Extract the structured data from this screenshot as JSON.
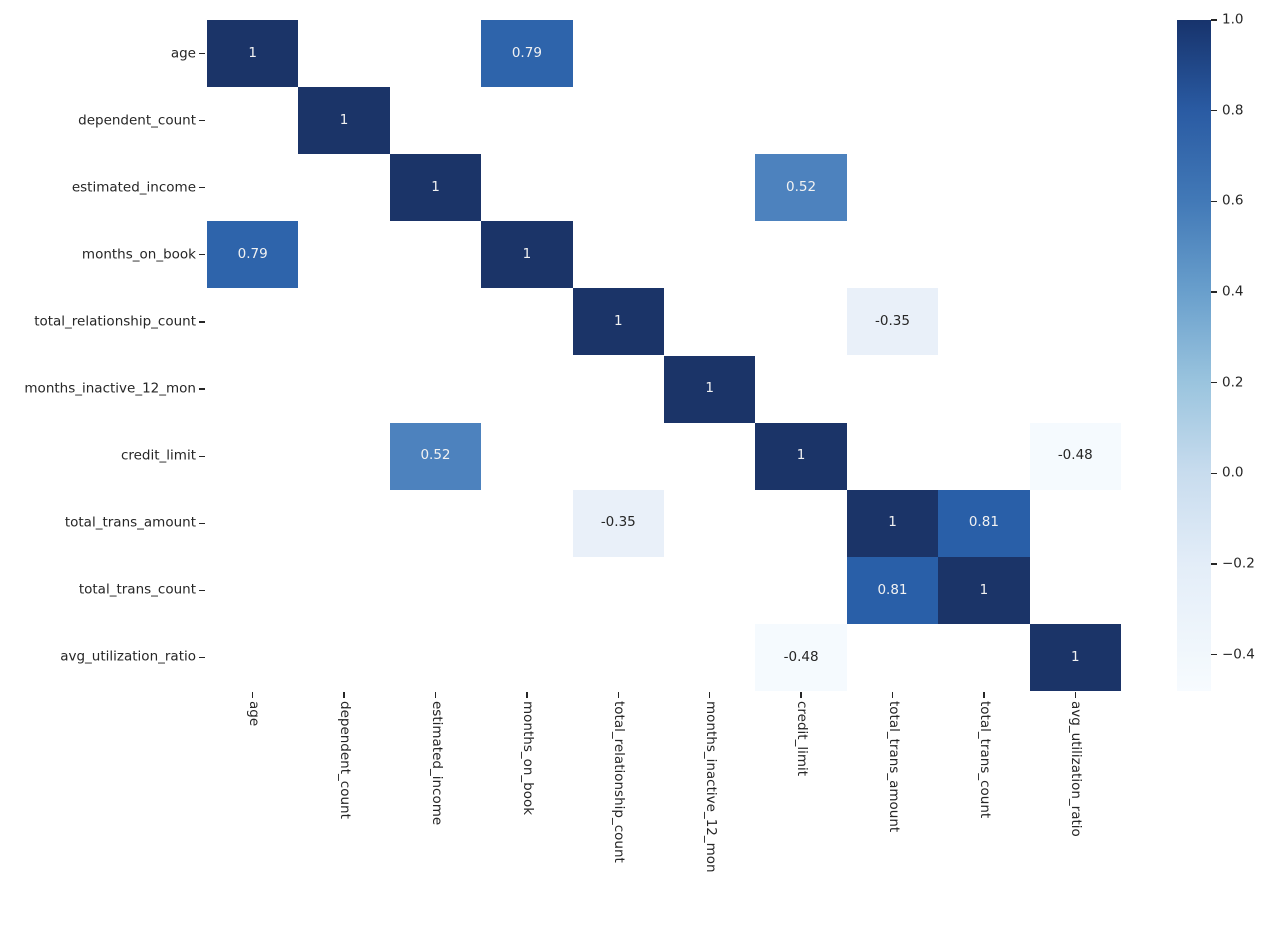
{
  "chart_data": {
    "type": "heatmap",
    "title": "",
    "xlabel": "",
    "ylabel": "",
    "colormap": "Blues",
    "grid": "off",
    "variables": [
      "age",
      "dependent_count",
      "estimated_income",
      "months_on_book",
      "total_relationship_count",
      "months_inactive_12_mon",
      "credit_limit",
      "total_trans_amount",
      "total_trans_count",
      "avg_utilization_ratio"
    ],
    "masked_cells_are_blank": true,
    "cells": [
      {
        "row": 0,
        "col": 0,
        "value": 1,
        "label": "1",
        "color": "#1b3468",
        "text_color": "#f2f2f2"
      },
      {
        "row": 0,
        "col": 3,
        "value": 0.79,
        "label": "0.79",
        "color": "#2e64ab",
        "text_color": "#f2f2f2"
      },
      {
        "row": 1,
        "col": 1,
        "value": 1,
        "label": "1",
        "color": "#1b3468",
        "text_color": "#f2f2f2"
      },
      {
        "row": 2,
        "col": 2,
        "value": 1,
        "label": "1",
        "color": "#1b3468",
        "text_color": "#f2f2f2"
      },
      {
        "row": 2,
        "col": 6,
        "value": 0.52,
        "label": "0.52",
        "color": "#4d82be",
        "text_color": "#f2f2f2"
      },
      {
        "row": 3,
        "col": 0,
        "value": 0.79,
        "label": "0.79",
        "color": "#2e64ab",
        "text_color": "#f2f2f2"
      },
      {
        "row": 3,
        "col": 3,
        "value": 1,
        "label": "1",
        "color": "#1b3468",
        "text_color": "#f2f2f2"
      },
      {
        "row": 4,
        "col": 4,
        "value": 1,
        "label": "1",
        "color": "#1b3468",
        "text_color": "#f2f2f2"
      },
      {
        "row": 4,
        "col": 7,
        "value": -0.35,
        "label": "-0.35",
        "color": "#e9f0f9",
        "text_color": "#262626"
      },
      {
        "row": 5,
        "col": 5,
        "value": 1,
        "label": "1",
        "color": "#1b3468",
        "text_color": "#f2f2f2"
      },
      {
        "row": 6,
        "col": 2,
        "value": 0.52,
        "label": "0.52",
        "color": "#4d82be",
        "text_color": "#f2f2f2"
      },
      {
        "row": 6,
        "col": 6,
        "value": 1,
        "label": "1",
        "color": "#1b3468",
        "text_color": "#f2f2f2"
      },
      {
        "row": 6,
        "col": 9,
        "value": -0.48,
        "label": "-0.48",
        "color": "#f5fafe",
        "text_color": "#262626"
      },
      {
        "row": 7,
        "col": 4,
        "value": -0.35,
        "label": "-0.35",
        "color": "#e9f0f9",
        "text_color": "#262626"
      },
      {
        "row": 7,
        "col": 7,
        "value": 1,
        "label": "1",
        "color": "#1b3468",
        "text_color": "#f2f2f2"
      },
      {
        "row": 7,
        "col": 8,
        "value": 0.81,
        "label": "0.81",
        "color": "#295fa8",
        "text_color": "#f2f2f2"
      },
      {
        "row": 8,
        "col": 7,
        "value": 0.81,
        "label": "0.81",
        "color": "#295fa8",
        "text_color": "#f2f2f2"
      },
      {
        "row": 8,
        "col": 8,
        "value": 1,
        "label": "1",
        "color": "#1b3468",
        "text_color": "#f2f2f2"
      },
      {
        "row": 9,
        "col": 6,
        "value": -0.48,
        "label": "-0.48",
        "color": "#f5fafe",
        "text_color": "#262626"
      },
      {
        "row": 9,
        "col": 9,
        "value": 1,
        "label": "1",
        "color": "#1b3468",
        "text_color": "#f2f2f2"
      }
    ],
    "colorbar": {
      "vmin": -0.48,
      "vmax": 1.0,
      "position": "right",
      "ticks": [
        {
          "value": 1.0,
          "label": "1.0"
        },
        {
          "value": 0.8,
          "label": "0.8"
        },
        {
          "value": 0.6,
          "label": "0.6"
        },
        {
          "value": 0.4,
          "label": "0.4"
        },
        {
          "value": 0.2,
          "label": "0.2"
        },
        {
          "value": 0.0,
          "label": "0.0"
        },
        {
          "value": -0.2,
          "label": "−0.2"
        },
        {
          "value": -0.4,
          "label": "−0.4"
        }
      ],
      "gradient_stops": [
        {
          "value": 1.0,
          "color": "#17336c"
        },
        {
          "value": 0.8,
          "color": "#2a5ba3"
        },
        {
          "value": 0.6,
          "color": "#4279b7"
        },
        {
          "value": 0.4,
          "color": "#699fcc"
        },
        {
          "value": 0.2,
          "color": "#9ac4de"
        },
        {
          "value": 0.0,
          "color": "#c8dcee"
        },
        {
          "value": -0.2,
          "color": "#e3edf8"
        },
        {
          "value": -0.4,
          "color": "#f1f7fc"
        },
        {
          "value": -0.48,
          "color": "#f7fbff"
        }
      ]
    },
    "colors": {
      "background": "#ffffff",
      "tick_text": "#262626",
      "annotation_light": "#f2f2f2",
      "annotation_dark": "#262626"
    }
  }
}
